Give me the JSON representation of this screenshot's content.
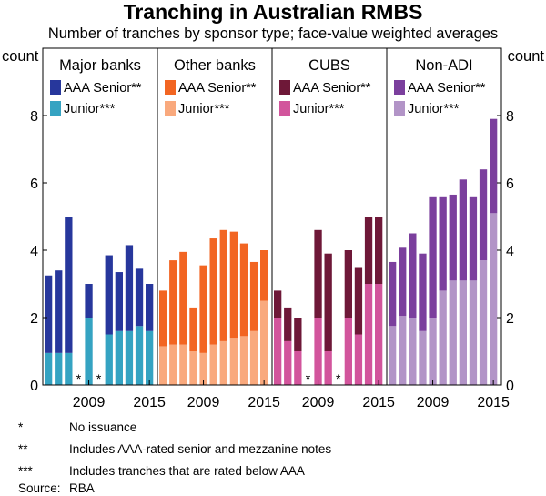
{
  "title": "Tranching in Australian RMBS",
  "subtitle": "Number of tranches by sponsor type; face-value weighted averages",
  "chart_data": {
    "type": "bar",
    "stacked": true,
    "y_unit_left": "count",
    "y_unit_right": "count",
    "ylim": [
      0,
      8
    ],
    "yticks": [
      0,
      2,
      4,
      6,
      8
    ],
    "years": [
      2005,
      2006,
      2007,
      2008,
      2009,
      2010,
      2011,
      2012,
      2013,
      2014,
      2015
    ],
    "xtick_labels": [
      "2009",
      "2015"
    ],
    "no_issuance_marker": "*",
    "panels": [
      {
        "name": "Major banks",
        "series": [
          {
            "name": "AAA Senior**",
            "color": "#27379c",
            "values": [
              2.3,
              2.45,
              4.05,
              null,
              1.0,
              null,
              2.35,
              1.75,
              2.55,
              1.7,
              1.4
            ]
          },
          {
            "name": "Junior***",
            "color": "#35a3c2",
            "values": [
              0.95,
              0.95,
              0.95,
              null,
              2.0,
              null,
              1.5,
              1.6,
              1.6,
              1.75,
              1.6
            ]
          }
        ],
        "no_issuance": [
          2008,
          2010
        ]
      },
      {
        "name": "Other banks",
        "series": [
          {
            "name": "AAA Senior**",
            "color": "#f26522",
            "values": [
              1.65,
              2.5,
              2.75,
              1.3,
              2.6,
              3.15,
              3.3,
              3.15,
              2.75,
              2.05,
              1.5
            ]
          },
          {
            "name": "Junior***",
            "color": "#f9a97d",
            "values": [
              1.15,
              1.2,
              1.2,
              1.0,
              0.95,
              1.2,
              1.3,
              1.4,
              1.45,
              1.6,
              2.5
            ]
          }
        ],
        "no_issuance": []
      },
      {
        "name": "CUBS",
        "series": [
          {
            "name": "AAA Senior**",
            "color": "#6e1838",
            "values": [
              0.8,
              1.0,
              1.0,
              null,
              2.6,
              2.9,
              null,
              2.0,
              2.0,
              2.0,
              2.0
            ]
          },
          {
            "name": "Junior***",
            "color": "#d2559c",
            "values": [
              2.0,
              1.3,
              1.0,
              null,
              2.0,
              1.0,
              null,
              2.0,
              1.5,
              3.0,
              3.0
            ]
          }
        ],
        "no_issuance": [
          2008,
          2011
        ]
      },
      {
        "name": "Non-ADI",
        "series": [
          {
            "name": "AAA Senior**",
            "color": "#7b3f9d",
            "values": [
              1.9,
              2.05,
              2.5,
              2.3,
              3.6,
              2.8,
              2.55,
              3.0,
              2.5,
              2.7,
              2.8
            ]
          },
          {
            "name": "Junior***",
            "color": "#b294c7",
            "values": [
              1.75,
              2.05,
              2.0,
              1.6,
              2.0,
              2.8,
              3.1,
              3.1,
              3.1,
              3.7,
              5.1
            ]
          }
        ],
        "no_issuance": []
      }
    ]
  },
  "notes": [
    {
      "marker": "*",
      "text": "No issuance"
    },
    {
      "marker": "**",
      "text": "Includes AAA-rated senior and mezzanine notes"
    },
    {
      "marker": "***",
      "text": "Includes tranches that are rated below AAA"
    },
    {
      "marker": "Source:",
      "text": "RBA"
    }
  ]
}
